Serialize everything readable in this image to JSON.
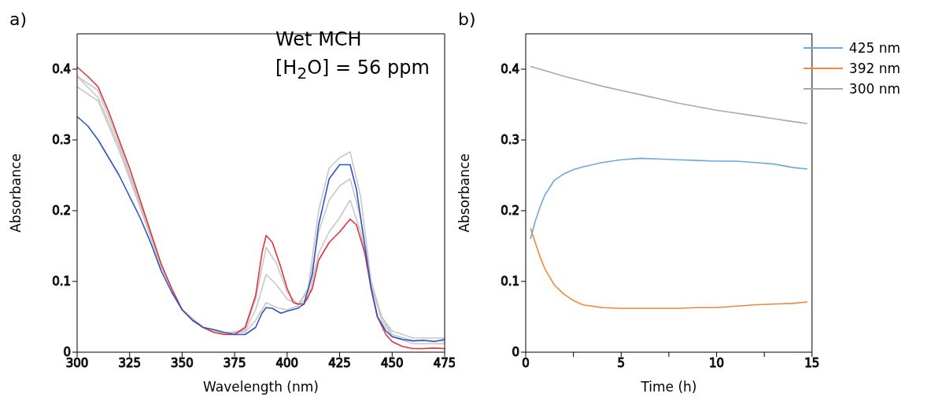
{
  "chart_data": [
    {
      "type": "line",
      "title": "a)",
      "xlabel": "Wavelength (nm)",
      "ylabel": "Absorbance",
      "annotations": [
        "Wet MCH",
        "[H$_{2}$O] =  56 ppm"
      ],
      "xlim": [
        300,
        475
      ],
      "xticks": [
        300,
        325,
        350,
        375,
        400,
        425,
        450,
        475
      ],
      "ylim": [
        0,
        0.45
      ],
      "yticks": [
        0,
        0.1,
        0.2,
        0.3,
        0.4
      ],
      "grid": false,
      "legend": false,
      "series": [
        {
          "color": "#c8c8c8",
          "x": [
            300,
            310,
            320,
            330,
            340,
            350,
            360,
            370,
            380,
            385,
            390,
            395,
            400,
            405,
            410,
            415,
            420,
            425,
            430,
            435,
            440,
            445,
            450,
            460,
            470,
            475
          ],
          "values": [
            0.39,
            0.37,
            0.295,
            0.21,
            0.122,
            0.06,
            0.035,
            0.026,
            0.032,
            0.075,
            0.148,
            0.125,
            0.085,
            0.068,
            0.075,
            0.14,
            0.17,
            0.19,
            0.215,
            0.17,
            0.095,
            0.045,
            0.022,
            0.012,
            0.012,
            0.012
          ]
        },
        {
          "color": "#c8c8c8",
          "x": [
            300,
            310,
            320,
            330,
            340,
            350,
            360,
            370,
            380,
            385,
            390,
            395,
            400,
            405,
            410,
            415,
            420,
            425,
            430,
            435,
            440,
            445,
            450,
            460,
            470,
            475
          ],
          "values": [
            0.375,
            0.355,
            0.285,
            0.205,
            0.12,
            0.06,
            0.035,
            0.027,
            0.03,
            0.06,
            0.11,
            0.095,
            0.075,
            0.068,
            0.085,
            0.17,
            0.215,
            0.235,
            0.245,
            0.19,
            0.1,
            0.05,
            0.025,
            0.016,
            0.016,
            0.016
          ]
        },
        {
          "color": "#c8c8c8",
          "x": [
            300,
            310,
            320,
            330,
            340,
            350,
            360,
            370,
            380,
            385,
            390,
            395,
            400,
            405,
            410,
            415,
            420,
            425,
            430,
            435,
            440,
            445,
            450,
            460,
            470,
            475
          ],
          "values": [
            0.39,
            0.36,
            0.29,
            0.205,
            0.12,
            0.06,
            0.035,
            0.027,
            0.028,
            0.045,
            0.07,
            0.063,
            0.06,
            0.065,
            0.09,
            0.2,
            0.26,
            0.275,
            0.283,
            0.22,
            0.1,
            0.05,
            0.03,
            0.02,
            0.02,
            0.02
          ]
        },
        {
          "color": "#e0333c",
          "x": [
            300,
            305,
            310,
            315,
            320,
            325,
            330,
            335,
            340,
            345,
            350,
            355,
            360,
            365,
            370,
            375,
            380,
            385,
            388,
            390,
            393,
            397,
            400,
            403,
            405,
            408,
            412,
            415,
            420,
            425,
            430,
            433,
            437,
            440,
            443,
            447,
            450,
            455,
            460,
            465,
            470,
            475
          ],
          "values": [
            0.403,
            0.39,
            0.375,
            0.34,
            0.3,
            0.26,
            0.215,
            0.17,
            0.125,
            0.09,
            0.06,
            0.045,
            0.035,
            0.028,
            0.025,
            0.025,
            0.035,
            0.08,
            0.14,
            0.165,
            0.155,
            0.12,
            0.09,
            0.07,
            0.068,
            0.068,
            0.09,
            0.13,
            0.155,
            0.17,
            0.188,
            0.18,
            0.14,
            0.09,
            0.05,
            0.025,
            0.015,
            0.008,
            0.005,
            0.005,
            0.006,
            0.005
          ]
        },
        {
          "color": "#2e55c4",
          "x": [
            300,
            305,
            310,
            315,
            320,
            325,
            330,
            335,
            340,
            345,
            350,
            355,
            360,
            365,
            370,
            375,
            380,
            385,
            388,
            390,
            393,
            397,
            400,
            405,
            408,
            412,
            415,
            420,
            425,
            430,
            433,
            437,
            440,
            443,
            447,
            450,
            455,
            460,
            465,
            470,
            475
          ],
          "values": [
            0.333,
            0.32,
            0.3,
            0.275,
            0.25,
            0.22,
            0.19,
            0.155,
            0.115,
            0.085,
            0.06,
            0.045,
            0.035,
            0.032,
            0.028,
            0.025,
            0.025,
            0.035,
            0.055,
            0.063,
            0.062,
            0.055,
            0.058,
            0.062,
            0.068,
            0.11,
            0.18,
            0.245,
            0.265,
            0.265,
            0.23,
            0.15,
            0.09,
            0.05,
            0.03,
            0.022,
            0.018,
            0.016,
            0.017,
            0.015,
            0.018
          ]
        }
      ]
    },
    {
      "type": "line",
      "title": "b)",
      "xlabel": "Time (h)",
      "ylabel": "Absorbance",
      "xlim": [
        0,
        15
      ],
      "xticks": [
        0,
        {
          "value": 2.5,
          "label": null
        },
        5,
        {
          "value": 7.5,
          "label": null
        },
        10,
        {
          "value": 12.5,
          "label": null
        },
        15
      ],
      "ylim": [
        0,
        0.45
      ],
      "yticks": [
        0,
        0.1,
        0.2,
        0.3,
        0.4
      ],
      "grid": false,
      "legend": "top right",
      "series": [
        {
          "name": "425 nm",
          "color": "#6fa8dc",
          "x": [
            0.25,
            0.5,
            0.75,
            1,
            1.5,
            2,
            2.5,
            3,
            4,
            5,
            6,
            7,
            8,
            9,
            10,
            11,
            12,
            13,
            14,
            14.75
          ],
          "values": [
            0.16,
            0.185,
            0.205,
            0.222,
            0.243,
            0.252,
            0.258,
            0.262,
            0.268,
            0.272,
            0.274,
            0.273,
            0.272,
            0.271,
            0.27,
            0.27,
            0.268,
            0.266,
            0.261,
            0.259
          ]
        },
        {
          "name": "392 nm",
          "color": "#f0883e",
          "x": [
            0.25,
            0.5,
            0.75,
            1,
            1.5,
            2,
            2.5,
            3,
            4,
            5,
            6,
            7,
            8,
            9,
            10,
            11,
            12,
            13,
            14,
            14.75
          ],
          "values": [
            0.175,
            0.155,
            0.135,
            0.118,
            0.095,
            0.082,
            0.073,
            0.067,
            0.063,
            0.062,
            0.062,
            0.062,
            0.062,
            0.063,
            0.063,
            0.065,
            0.067,
            0.068,
            0.069,
            0.071
          ]
        },
        {
          "name": "300 nm",
          "color": "#a9a9a9",
          "x": [
            0.25,
            1,
            2,
            3,
            4,
            5,
            6,
            7,
            8,
            9,
            10,
            11,
            12,
            13,
            14,
            14.75
          ],
          "values": [
            0.404,
            0.398,
            0.39,
            0.383,
            0.376,
            0.37,
            0.364,
            0.358,
            0.352,
            0.347,
            0.342,
            0.338,
            0.334,
            0.33,
            0.326,
            0.323
          ]
        }
      ]
    }
  ]
}
